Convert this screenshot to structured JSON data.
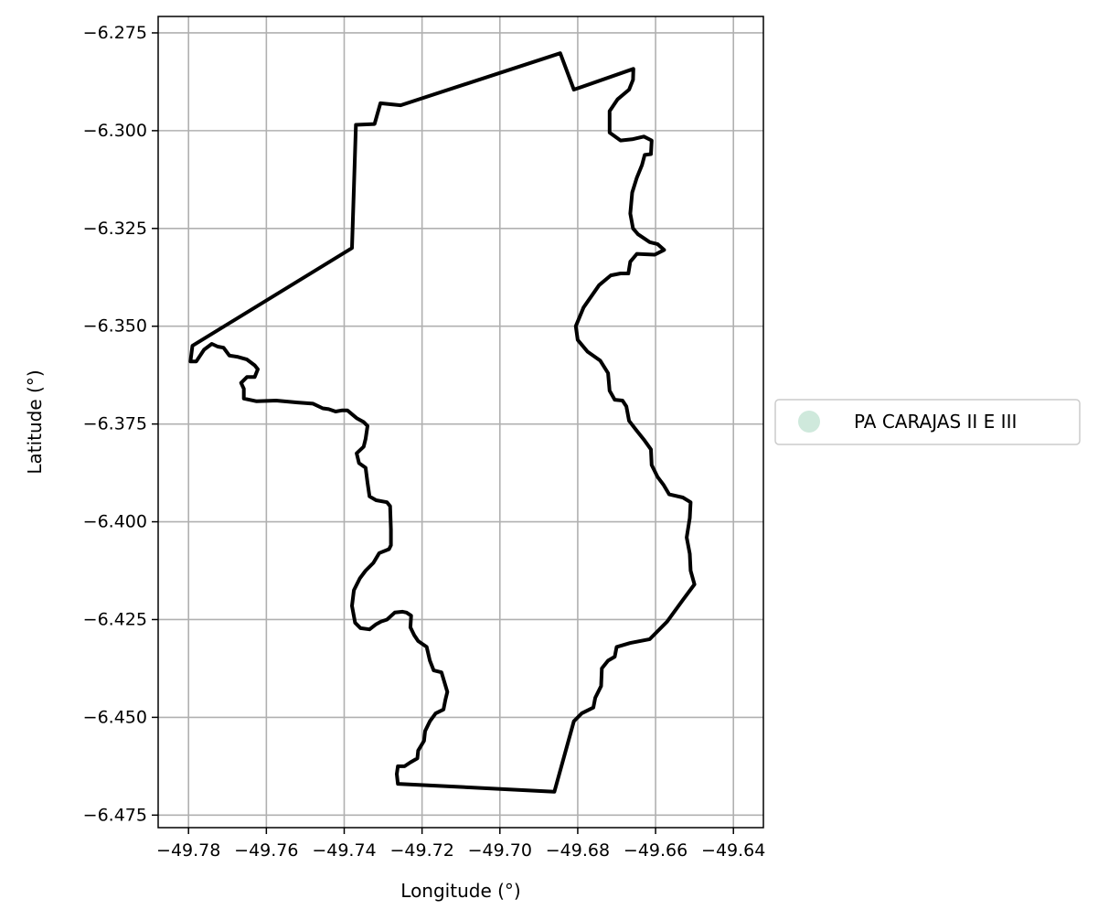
{
  "chart_data": {
    "type": "map",
    "xlabel": "Longitude (°)",
    "ylabel": "Latitude (°)",
    "xlim": [
      -49.7878,
      -49.6323
    ],
    "ylim": [
      -6.4782,
      -6.2708
    ],
    "grid": true,
    "x_ticks": [
      -49.78,
      -49.76,
      -49.74,
      -49.72,
      -49.7,
      -49.68,
      -49.66,
      -49.64
    ],
    "x_tick_labels": [
      "−49.78",
      "−49.76",
      "−49.74",
      "−49.72",
      "−49.70",
      "−49.68",
      "−49.66",
      "−49.64"
    ],
    "y_ticks": [
      -6.275,
      -6.3,
      -6.325,
      -6.35,
      -6.375,
      -6.4,
      -6.425,
      -6.45,
      -6.475
    ],
    "y_tick_labels": [
      "−6.275",
      "−6.300",
      "−6.325",
      "−6.350",
      "−6.375",
      "−6.400",
      "−6.425",
      "−6.450",
      "−6.475"
    ],
    "legend": {
      "placement": "outside right",
      "entries": [
        {
          "label": "PA CARAJAS II E III",
          "color": "#cfe9dc"
        }
      ]
    },
    "boundary_color": "#000000",
    "boundary": [
      [
        -49.6845,
        -6.2802
      ],
      [
        -49.681,
        -6.2895
      ],
      [
        -49.6657,
        -6.2842
      ],
      [
        -49.6658,
        -6.287
      ],
      [
        -49.6668,
        -6.2895
      ],
      [
        -49.6698,
        -6.292
      ],
      [
        -49.6718,
        -6.295
      ],
      [
        -49.6718,
        -6.3005
      ],
      [
        -49.669,
        -6.3025
      ],
      [
        -49.666,
        -6.3022
      ],
      [
        -49.663,
        -6.3015
      ],
      [
        -49.661,
        -6.3025
      ],
      [
        -49.6612,
        -6.306
      ],
      [
        -49.6628,
        -6.3062
      ],
      [
        -49.6635,
        -6.3088
      ],
      [
        -49.6648,
        -6.312
      ],
      [
        -49.666,
        -6.3158
      ],
      [
        -49.6665,
        -6.3212
      ],
      [
        -49.6658,
        -6.325
      ],
      [
        -49.6645,
        -6.3265
      ],
      [
        -49.6615,
        -6.3285
      ],
      [
        -49.6595,
        -6.329
      ],
      [
        -49.6578,
        -6.3305
      ],
      [
        -49.6602,
        -6.3317
      ],
      [
        -49.6648,
        -6.3315
      ],
      [
        -49.6665,
        -6.3335
      ],
      [
        -49.667,
        -6.3365
      ],
      [
        -49.669,
        -6.3365
      ],
      [
        -49.6715,
        -6.337
      ],
      [
        -49.6745,
        -6.3395
      ],
      [
        -49.6785,
        -6.3452
      ],
      [
        -49.6805,
        -6.35
      ],
      [
        -49.68,
        -6.3535
      ],
      [
        -49.6775,
        -6.3565
      ],
      [
        -49.6742,
        -6.3588
      ],
      [
        -49.6722,
        -6.362
      ],
      [
        -49.6718,
        -6.3665
      ],
      [
        -49.6705,
        -6.3688
      ],
      [
        -49.6685,
        -6.369
      ],
      [
        -49.6675,
        -6.3705
      ],
      [
        -49.6668,
        -6.3742
      ],
      [
        -49.665,
        -6.3765
      ],
      [
        -49.663,
        -6.379
      ],
      [
        -49.6612,
        -6.3815
      ],
      [
        -49.661,
        -6.3855
      ],
      [
        -49.6595,
        -6.3885
      ],
      [
        -49.658,
        -6.3905
      ],
      [
        -49.6565,
        -6.393
      ],
      [
        -49.653,
        -6.3938
      ],
      [
        -49.651,
        -6.395
      ],
      [
        -49.6512,
        -6.399
      ],
      [
        -49.652,
        -6.404
      ],
      [
        -49.6512,
        -6.4082
      ],
      [
        -49.651,
        -6.4125
      ],
      [
        -49.65,
        -6.416
      ],
      [
        -49.653,
        -6.42
      ],
      [
        -49.657,
        -6.4255
      ],
      [
        -49.6615,
        -6.43
      ],
      [
        -49.6665,
        -6.431
      ],
      [
        -49.67,
        -6.432
      ],
      [
        -49.6705,
        -6.4345
      ],
      [
        -49.6722,
        -6.4355
      ],
      [
        -49.6738,
        -6.4375
      ],
      [
        -49.674,
        -6.442
      ],
      [
        -49.6755,
        -6.445
      ],
      [
        -49.676,
        -6.4475
      ],
      [
        -49.679,
        -6.449
      ],
      [
        -49.681,
        -6.451
      ],
      [
        -49.686,
        -6.469
      ],
      [
        -49.7262,
        -6.467
      ],
      [
        -49.7265,
        -6.4645
      ],
      [
        -49.7262,
        -6.4625
      ],
      [
        -49.7245,
        -6.4625
      ],
      [
        -49.723,
        -6.4615
      ],
      [
        -49.7212,
        -6.4605
      ],
      [
        -49.721,
        -6.4585
      ],
      [
        -49.7195,
        -6.456
      ],
      [
        -49.7192,
        -6.4535
      ],
      [
        -49.718,
        -6.451
      ],
      [
        -49.7165,
        -6.449
      ],
      [
        -49.7145,
        -6.448
      ],
      [
        -49.714,
        -6.4455
      ],
      [
        -49.7135,
        -6.4435
      ],
      [
        -49.715,
        -6.4385
      ],
      [
        -49.717,
        -6.438
      ],
      [
        -49.718,
        -6.4355
      ],
      [
        -49.7188,
        -6.432
      ],
      [
        -49.721,
        -6.4305
      ],
      [
        -49.722,
        -6.429
      ],
      [
        -49.723,
        -6.427
      ],
      [
        -49.7228,
        -6.424
      ],
      [
        -49.724,
        -6.4232
      ],
      [
        -49.725,
        -6.423
      ],
      [
        -49.727,
        -6.4232
      ],
      [
        -49.729,
        -6.425
      ],
      [
        -49.7305,
        -6.4255
      ],
      [
        -49.7318,
        -6.4262
      ],
      [
        -49.7335,
        -6.4275
      ],
      [
        -49.7358,
        -6.4272
      ],
      [
        -49.7372,
        -6.4258
      ],
      [
        -49.738,
        -6.4215
      ],
      [
        -49.7375,
        -6.4175
      ],
      [
        -49.736,
        -6.4145
      ],
      [
        -49.7345,
        -6.4125
      ],
      [
        -49.7325,
        -6.4105
      ],
      [
        -49.731,
        -6.408
      ],
      [
        -49.7285,
        -6.407
      ],
      [
        -49.728,
        -6.406
      ],
      [
        -49.728,
        -6.402
      ],
      [
        -49.7282,
        -6.396
      ],
      [
        -49.729,
        -6.395
      ],
      [
        -49.7318,
        -6.3945
      ],
      [
        -49.7335,
        -6.3935
      ],
      [
        -49.734,
        -6.39
      ],
      [
        -49.7345,
        -6.3862
      ],
      [
        -49.7362,
        -6.385
      ],
      [
        -49.7368,
        -6.3825
      ],
      [
        -49.735,
        -6.3808
      ],
      [
        -49.7345,
        -6.3788
      ],
      [
        -49.734,
        -6.3755
      ],
      [
        -49.735,
        -6.3745
      ],
      [
        -49.7368,
        -6.3735
      ],
      [
        -49.7392,
        -6.3715
      ],
      [
        -49.7405,
        -6.3715
      ],
      [
        -49.7422,
        -6.3718
      ],
      [
        -49.744,
        -6.3712
      ],
      [
        -49.7455,
        -6.371
      ],
      [
        -49.748,
        -6.3698
      ],
      [
        -49.752,
        -6.3695
      ],
      [
        -49.7575,
        -6.369
      ],
      [
        -49.7625,
        -6.3692
      ],
      [
        -49.7658,
        -6.3685
      ],
      [
        -49.7658,
        -6.366
      ],
      [
        -49.7665,
        -6.3645
      ],
      [
        -49.765,
        -6.363
      ],
      [
        -49.763,
        -6.363
      ],
      [
        -49.7622,
        -6.361
      ],
      [
        -49.763,
        -6.36
      ],
      [
        -49.765,
        -6.3585
      ],
      [
        -49.7675,
        -6.3578
      ],
      [
        -49.7695,
        -6.3575
      ],
      [
        -49.771,
        -6.3555
      ],
      [
        -49.7725,
        -6.3552
      ],
      [
        -49.774,
        -6.3545
      ],
      [
        -49.776,
        -6.356
      ],
      [
        -49.778,
        -6.359
      ],
      [
        -49.7795,
        -6.359
      ],
      [
        -49.779,
        -6.355
      ],
      [
        -49.738,
        -6.33
      ],
      [
        -49.737,
        -6.2985
      ],
      [
        -49.7322,
        -6.2983
      ],
      [
        -49.7307,
        -6.293
      ],
      [
        -49.7255,
        -6.2935
      ],
      [
        -49.6845,
        -6.2802
      ]
    ]
  }
}
